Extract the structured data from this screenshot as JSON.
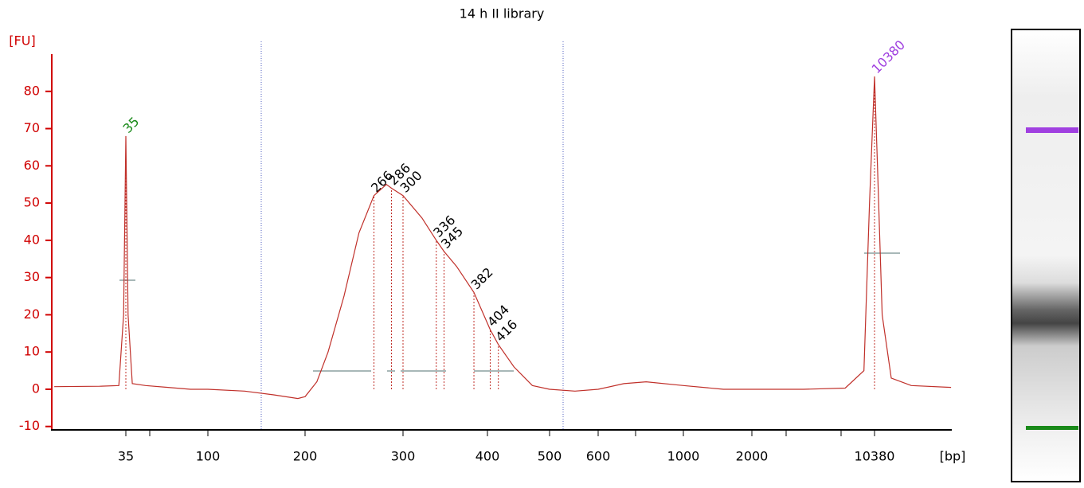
{
  "chart_data": {
    "type": "line",
    "title": "14 h II library",
    "y_label": "[FU]",
    "x_label": "[bp]",
    "color": "#c0302a",
    "x": [
      14,
      25,
      32,
      34,
      35,
      36,
      38,
      45,
      60,
      80,
      100,
      130,
      160,
      190,
      200,
      210,
      220,
      235,
      250,
      266,
      280,
      286,
      300,
      320,
      336,
      345,
      360,
      382,
      404,
      416,
      440,
      470,
      500,
      550,
      600,
      700,
      800,
      1000,
      1500,
      2000,
      4000,
      7000,
      9000,
      9700,
      10380,
      10800,
      11500,
      13000,
      17000,
      29000
    ],
    "values": [
      0.7,
      0.8,
      1,
      20,
      68,
      20,
      1.5,
      1,
      0.5,
      0,
      0,
      -0.5,
      -1.5,
      -2.5,
      -2,
      2,
      10,
      25,
      42,
      52,
      55,
      54,
      52,
      46,
      40,
      37,
      33,
      26,
      16,
      12,
      6,
      1,
      0,
      -0.5,
      0,
      1.5,
      2,
      1,
      0,
      0,
      0,
      0.3,
      5,
      50,
      84,
      60,
      20,
      3,
      1,
      0.5
    ],
    "xlim": [
      14,
      29000
    ],
    "xticks": [
      35,
      100,
      200,
      300,
      400,
      500,
      600,
      1000,
      2000,
      10380
    ],
    "xscale": "log",
    "ylim": [
      -11,
      90
    ],
    "yticks": [
      -10,
      0,
      10,
      20,
      30,
      40,
      50,
      60,
      70,
      80
    ],
    "peaks": {
      "x": [
        35,
        266,
        286,
        300,
        336,
        345,
        382,
        404,
        416,
        10380
      ],
      "colors": [
        "#1a8a1a",
        "#000000",
        "#000000",
        "#000000",
        "#000000",
        "#000000",
        "#000000",
        "#000000",
        "#000000",
        "#a040e0"
      ]
    }
  }
}
